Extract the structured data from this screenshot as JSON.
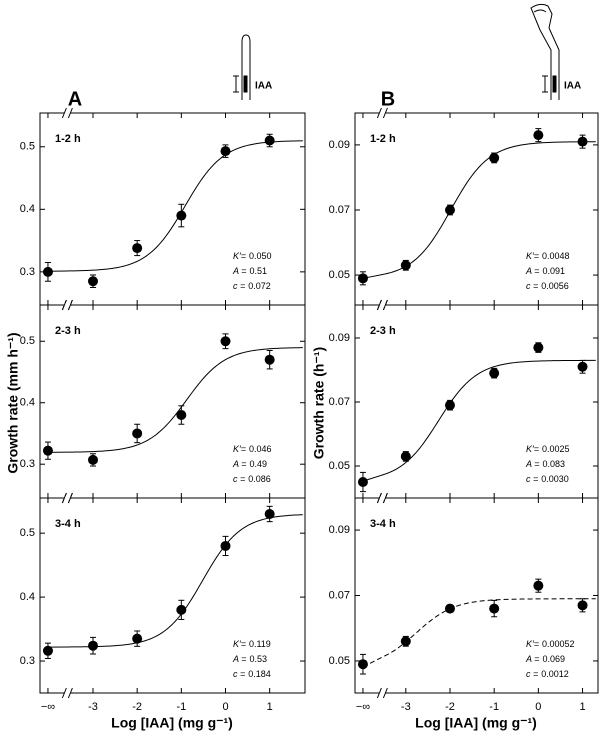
{
  "figure": {
    "columns": [
      {
        "letter": "A",
        "ylabel": "Growth rate (mm h⁻¹)",
        "xlabel": "Log [IAA] (mg g⁻¹)",
        "icon_label": "IAA"
      },
      {
        "letter": "B",
        "ylabel": "Growth rate (h⁻¹)",
        "xlabel": "Log [IAA] (mg g⁻¹)",
        "icon_label": "IAA"
      }
    ]
  },
  "chart_data": [
    {
      "type": "scatter",
      "title": "1-2 h",
      "x": [
        null,
        -3,
        -2,
        -1,
        0,
        1
      ],
      "values": [
        0.3,
        0.285,
        0.338,
        0.39,
        0.493,
        0.51
      ],
      "errors": [
        0.015,
        0.01,
        0.012,
        0.018,
        0.01,
        0.01
      ],
      "xlim": [
        -4.2,
        1.8
      ],
      "ylim": [
        0.247,
        0.554
      ],
      "yticks": [
        0.3,
        0.4,
        0.5
      ],
      "xticks": [
        {
          "value": null,
          "label": "−∞"
        },
        -3,
        -2,
        -1,
        0,
        1
      ],
      "show_xtick_labels": false,
      "curve_style": "solid",
      "params": [
        {
          "name": "K′=",
          "value": 0.05,
          "label": "0.050"
        },
        {
          "name": "A =",
          "value": 0.51,
          "label": "0.51"
        },
        {
          "name": "c =",
          "value": 0.072,
          "label": "0.072"
        }
      ]
    },
    {
      "type": "scatter",
      "title": "2-3 h",
      "x": [
        null,
        -3,
        -2,
        -1,
        0,
        1
      ],
      "values": [
        0.322,
        0.307,
        0.35,
        0.38,
        0.5,
        0.47
      ],
      "errors": [
        0.014,
        0.01,
        0.015,
        0.015,
        0.012,
        0.015
      ],
      "xlim": [
        -4.2,
        1.8
      ],
      "ylim": [
        0.245,
        0.559
      ],
      "yticks": [
        0.3,
        0.4,
        0.5
      ],
      "xticks": [
        {
          "value": null,
          "label": "−∞"
        },
        -3,
        -2,
        -1,
        0,
        1
      ],
      "show_xtick_labels": false,
      "curve_style": "solid",
      "params": [
        {
          "name": "K′=",
          "value": 0.046,
          "label": "0.046"
        },
        {
          "name": "A =",
          "value": 0.49,
          "label": "0.49"
        },
        {
          "name": "c =",
          "value": 0.086,
          "label": "0.086"
        }
      ]
    },
    {
      "type": "scatter",
      "title": "3-4 h",
      "x": [
        null,
        -3,
        -2,
        -1,
        0,
        1
      ],
      "values": [
        0.316,
        0.324,
        0.335,
        0.38,
        0.48,
        0.53
      ],
      "errors": [
        0.012,
        0.013,
        0.012,
        0.015,
        0.015,
        0.012
      ],
      "xlim": [
        -4.2,
        1.8
      ],
      "ylim": [
        0.25,
        0.555
      ],
      "yticks": [
        0.3,
        0.4,
        0.5
      ],
      "xticks": [
        {
          "value": null,
          "label": "−∞"
        },
        -3,
        -2,
        -1,
        0,
        1
      ],
      "show_xtick_labels": true,
      "curve_style": "solid",
      "params": [
        {
          "name": "K′=",
          "value": 0.119,
          "label": "0.119"
        },
        {
          "name": "A =",
          "value": 0.53,
          "label": "0.53"
        },
        {
          "name": "c =",
          "value": 0.184,
          "label": "0.184"
        }
      ]
    },
    {
      "type": "scatter",
      "title": "1-2 h",
      "x": [
        null,
        -3,
        -2,
        -1,
        0,
        1
      ],
      "values": [
        0.049,
        0.053,
        0.07,
        0.086,
        0.093,
        0.091
      ],
      "errors": [
        0.002,
        0.0015,
        0.0015,
        0.0015,
        0.002,
        0.002
      ],
      "xlim": [
        -4.15,
        1.35
      ],
      "ylim": [
        0.0408,
        0.0998
      ],
      "yticks": [
        0.05,
        0.07,
        0.09
      ],
      "xticks": [
        {
          "value": null,
          "label": "−∞"
        },
        -3,
        -2,
        -1,
        0,
        1
      ],
      "show_xtick_labels": false,
      "curve_style": "solid",
      "params": [
        {
          "name": "K′=",
          "value": 0.0048,
          "label": "0.0048"
        },
        {
          "name": "A =",
          "value": 0.091,
          "label": "0.091"
        },
        {
          "name": "c =",
          "value": 0.0056,
          "label": "0.0056"
        }
      ]
    },
    {
      "type": "scatter",
      "title": "2-3 h",
      "x": [
        null,
        -3,
        -2,
        -1,
        0,
        1
      ],
      "values": [
        0.045,
        0.053,
        0.069,
        0.079,
        0.087,
        0.081
      ],
      "errors": [
        0.003,
        0.0015,
        0.0015,
        0.0015,
        0.0015,
        0.002
      ],
      "xlim": [
        -4.15,
        1.35
      ],
      "ylim": [
        0.04,
        0.1003
      ],
      "yticks": [
        0.05,
        0.07,
        0.09
      ],
      "xticks": [
        {
          "value": null,
          "label": "−∞"
        },
        -3,
        -2,
        -1,
        0,
        1
      ],
      "show_xtick_labels": false,
      "curve_style": "solid",
      "params": [
        {
          "name": "K′=",
          "value": 0.0025,
          "label": "0.0025"
        },
        {
          "name": "A =",
          "value": 0.083,
          "label": "0.083"
        },
        {
          "name": "c =",
          "value": 0.003,
          "label": "0.0030"
        }
      ]
    },
    {
      "type": "scatter",
      "title": "3-4 h",
      "x": [
        null,
        -3,
        -2,
        -1,
        0,
        1
      ],
      "values": [
        0.049,
        0.056,
        0.066,
        0.066,
        0.073,
        0.067
      ],
      "errors": [
        0.003,
        0.0015,
        0.001,
        0.0025,
        0.002,
        0.002
      ],
      "xlim": [
        -4.15,
        1.35
      ],
      "ylim": [
        0.0402,
        0.0998
      ],
      "yticks": [
        0.05,
        0.07,
        0.09
      ],
      "xticks": [
        {
          "value": null,
          "label": "−∞"
        },
        -3,
        -2,
        -1,
        0,
        1
      ],
      "show_xtick_labels": true,
      "curve_style": "dashed",
      "params": [
        {
          "name": "K′=",
          "value": 0.00052,
          "label": "0.00052"
        },
        {
          "name": "A =",
          "value": 0.069,
          "label": "0.069"
        },
        {
          "name": "c =",
          "value": 0.0012,
          "label": "0.0012"
        }
      ]
    }
  ]
}
